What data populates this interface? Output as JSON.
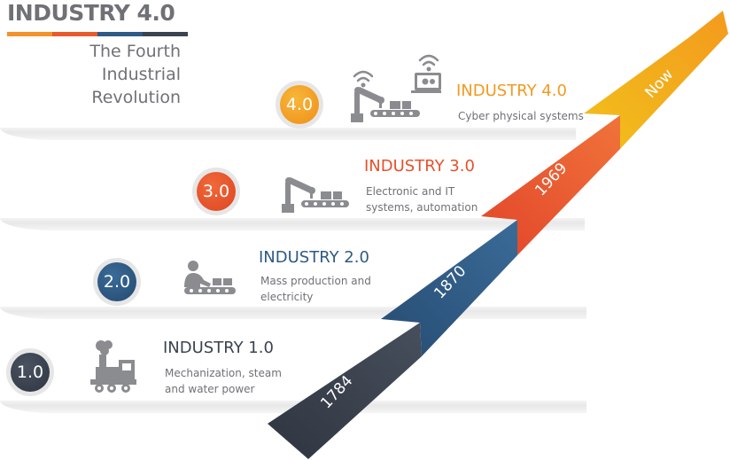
{
  "header": {
    "title": "INDUSTRY 4.0",
    "subtitle": "The Fourth Industrial\nRevolution",
    "bar_colors": [
      "#f2922a",
      "#e85a2b",
      "#2e5a85",
      "#3b4350"
    ]
  },
  "stages": [
    {
      "badge": "1.0",
      "title": "INDUSTRY 1.0",
      "description": "Mechanization, steam\nand water power",
      "year": "1784",
      "icon": "steam-locomotive-icon",
      "color": "#3b4350"
    },
    {
      "badge": "2.0",
      "title": "INDUSTRY 2.0",
      "description": "Mass production and\nelectricity",
      "year": "1870",
      "icon": "assembly-line-worker-icon",
      "color": "#2e5a85"
    },
    {
      "badge": "3.0",
      "title": "INDUSTRY 3.0",
      "description": "Electronic and IT\nsystems, automation",
      "year": "1969",
      "icon": "robot-arm-conveyor-icon",
      "color": "#e8502a"
    },
    {
      "badge": "4.0",
      "title": "INDUSTRY 4.0",
      "description": "Cyber physical systems",
      "year": "Now",
      "icon": "connected-robot-laptop-icon",
      "color": "#f29a1f"
    }
  ]
}
